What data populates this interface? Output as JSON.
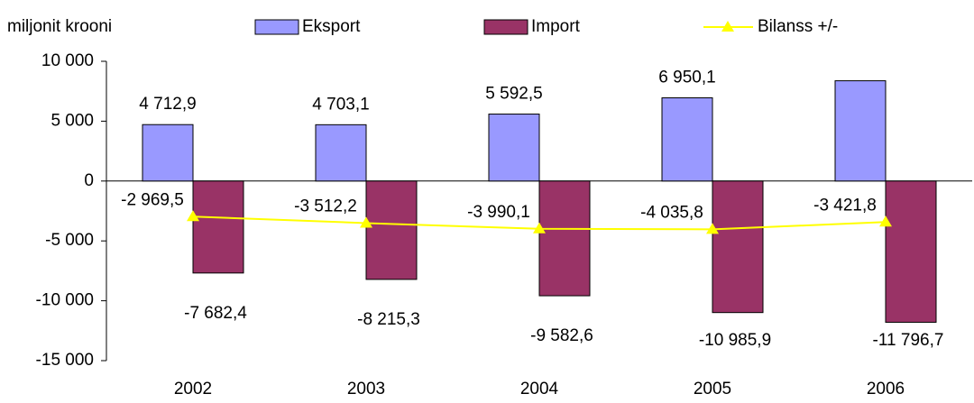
{
  "chart_data": {
    "type": "bar",
    "y_label": "miljonit krooni",
    "categories": [
      "2002",
      "2003",
      "2004",
      "2005",
      "2006"
    ],
    "series": [
      {
        "name": "Eksport",
        "color": "#9999ff",
        "values": [
          4712.9,
          4703.1,
          5592.5,
          6950.1,
          8374.9
        ],
        "value_labels": [
          "4 712,9",
          "4 703,1",
          "5 592,5",
          "6 950,1",
          null
        ]
      },
      {
        "name": "Import",
        "color": "#993366",
        "values": [
          -7682.4,
          -8215.3,
          -9582.6,
          -10985.9,
          -11796.7
        ],
        "value_labels": [
          "-7 682,4",
          "-8 215,3",
          "-9 582,6",
          "-10 985,9",
          "-11 796,7"
        ]
      },
      {
        "name": "Bilanss +/-",
        "type": "line",
        "color": "#ffff00",
        "values": [
          -2969.5,
          -3512.2,
          -3990.1,
          -4035.8,
          -3421.8
        ],
        "value_labels": [
          "-2 969,5",
          "-3 512,2",
          "-3 990,1",
          "-4 035,8",
          "-3 421,8"
        ]
      }
    ],
    "ylim": [
      -15000,
      10000
    ],
    "yticks": [
      {
        "value": -15000,
        "label": "-15 000"
      },
      {
        "value": -10000,
        "label": "-10 000"
      },
      {
        "value": -5000,
        "label": "-5 000"
      },
      0,
      {
        "value": 5000,
        "label": "5 000"
      },
      {
        "value": 10000,
        "label": "10 000"
      }
    ]
  }
}
